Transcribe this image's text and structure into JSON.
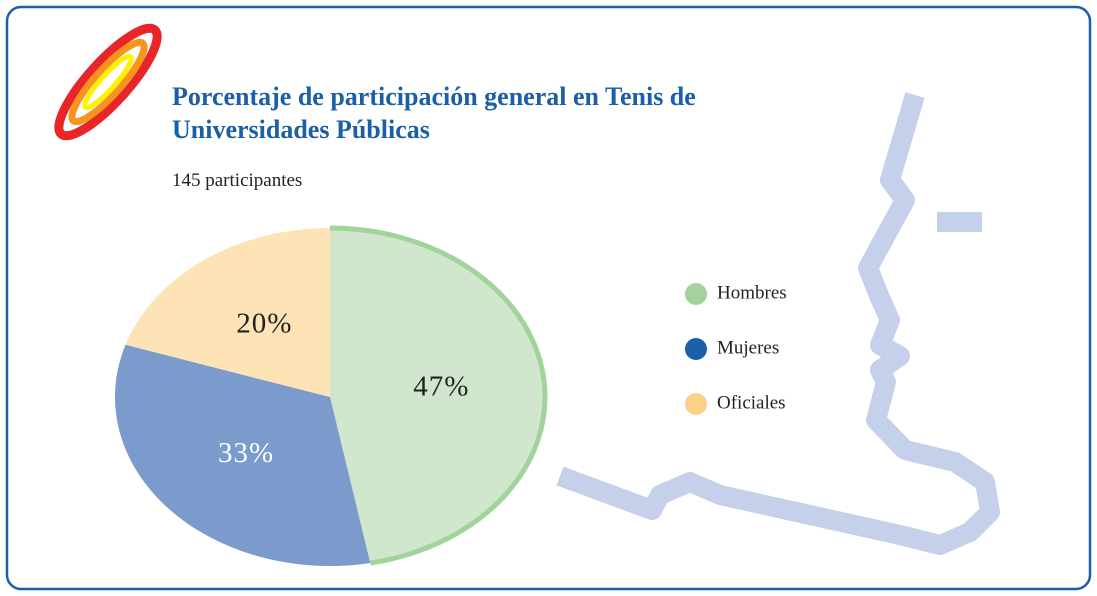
{
  "chart_data": {
    "type": "pie",
    "title": "Porcentaje de participación general en Tenis de Universidades Públicas",
    "subtitle": "145 participantes",
    "categories": [
      "Hombres",
      "Mujeres",
      "Oficiales"
    ],
    "values": [
      47,
      33,
      20
    ],
    "value_labels": [
      "47%",
      "33%",
      "20%"
    ],
    "colors": [
      "#a3d39c",
      "#1a5fa8",
      "#fdd08a"
    ],
    "slice_colors": [
      "#d1e7cd",
      "#7b9bcc",
      "#fde3b6"
    ],
    "legend": "right"
  }
}
